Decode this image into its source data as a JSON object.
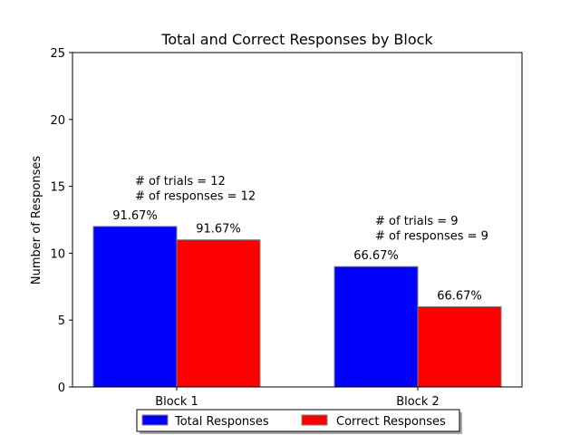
{
  "chart_data": {
    "type": "bar",
    "title": "Total and Correct Responses by Block",
    "xlabel": "",
    "ylabel": "Number of Responses",
    "categories": [
      "Block 1",
      "Block 2"
    ],
    "ylim": [
      0,
      25
    ],
    "yticks": [
      0,
      5,
      10,
      15,
      20,
      25
    ],
    "grid": false,
    "legend_position": "bottom-center",
    "series": [
      {
        "name": "Total Responses",
        "color": "#0000ff",
        "values": [
          12,
          9
        ],
        "labels": [
          "91.67%",
          "66.67%"
        ]
      },
      {
        "name": "Correct Responses",
        "color": "#ff0000",
        "values": [
          11,
          6
        ],
        "labels": [
          "91.67%",
          "66.67%"
        ]
      }
    ],
    "annotations": [
      {
        "lines": [
          "# of trials = 12",
          "# of responses = 12"
        ]
      },
      {
        "lines": [
          "# of trials = 9",
          "# of responses = 9"
        ]
      }
    ]
  }
}
